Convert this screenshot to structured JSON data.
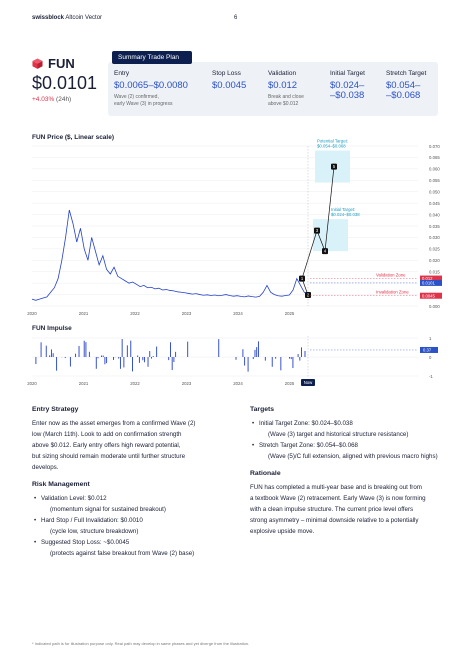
{
  "header": {
    "brand_bold": "swissblock",
    "brand_rest": " Altcoin Vector",
    "page": "6"
  },
  "coin": {
    "name": "FUN",
    "price": "$0.0101",
    "change": "+4.03%",
    "period": "(24h)",
    "brand_color": "#e0334a"
  },
  "plan": {
    "tag": "Summary Trade Plan",
    "entry": {
      "label": "Entry",
      "value": "$0.0065–$0.0080",
      "note1": "Wave (2) confirmed,",
      "note2": "early Wave (3) in progress"
    },
    "stop": {
      "label": "Stop Loss",
      "value": "$0.0045"
    },
    "validation": {
      "label": "Validation",
      "value": "$0.012",
      "note1": "Break and close",
      "note2": "above $0.012"
    },
    "initial": {
      "label": "Initial Target",
      "value1": "$0.024–",
      "value2": "–$0.038"
    },
    "stretch": {
      "label": "Stretch Target",
      "value1": "$0.054–",
      "value2": "–$0.068"
    }
  },
  "chart_data": [
    {
      "type": "line",
      "title": "FUN Price ($, Linear scale)",
      "x_ticks": [
        "2020",
        "2021",
        "2022",
        "2023",
        "2024",
        "2025"
      ],
      "y_ticks": [
        "0.070",
        "0.065",
        "0.060",
        "0.055",
        "0.050",
        "0.045",
        "0.040",
        "0.035",
        "0.030",
        "0.025",
        "0.020",
        "0.015",
        "0.010",
        "0.005",
        "0.000"
      ],
      "ylim": [
        0,
        0.07
      ],
      "price_series": [
        0.003,
        0.0025,
        0.003,
        0.0035,
        0.004,
        0.006,
        0.008,
        0.012,
        0.02,
        0.03,
        0.042,
        0.036,
        0.028,
        0.034,
        0.025,
        0.02,
        0.03,
        0.024,
        0.018,
        0.022,
        0.016,
        0.014,
        0.017,
        0.013,
        0.012,
        0.011,
        0.01,
        0.0105,
        0.0095,
        0.0085,
        0.009,
        0.008,
        0.0082,
        0.0075,
        0.0078,
        0.007,
        0.0072,
        0.0068,
        0.0066,
        0.0062,
        0.006,
        0.0058,
        0.0055,
        0.0052,
        0.0054,
        0.005,
        0.0047,
        0.0049,
        0.0046,
        0.0048,
        0.0045,
        0.0047,
        0.005,
        0.0046,
        0.0043,
        0.0045,
        0.0042,
        0.004,
        0.0044,
        0.0041,
        0.0039,
        0.0042,
        0.006,
        0.009,
        0.006,
        0.005,
        0.0045,
        0.0043,
        0.0046,
        0.0048,
        0.007,
        0.012,
        0.009,
        0.006,
        0.0048
      ],
      "projected_path": [
        {
          "label": "2",
          "price": 0.0048
        },
        {
          "label": "1",
          "price": 0.012
        },
        {
          "label": "3",
          "price": 0.033
        },
        {
          "label": "4",
          "price": 0.024
        },
        {
          "label": "5",
          "price": 0.061
        }
      ],
      "zones": [
        {
          "name": "Potential Target:",
          "range": "$0.054–$0.068",
          "low": 0.054,
          "high": 0.068
        },
        {
          "name": "Initial Target:",
          "range": "$0.024–$0.038",
          "low": 0.024,
          "high": 0.038
        }
      ],
      "levels": [
        {
          "name": "Validation Zone",
          "value": 0.012,
          "tag": "0.012",
          "color": "#e0334a"
        },
        {
          "name": "",
          "value": 0.0101,
          "tag": "0.0101",
          "color": "#2b52c6"
        },
        {
          "name": "Invalidation Zone",
          "value": 0.0045,
          "tag": "0.0045",
          "color": "#e0334a"
        }
      ]
    },
    {
      "type": "bar",
      "title": "FUN Impulse",
      "x_ticks": [
        "2020",
        "2021",
        "2022",
        "2023",
        "2024",
        "2025"
      ],
      "y_ticks": [
        "1",
        "0",
        "-1"
      ],
      "ylim": [
        -1,
        1
      ],
      "current": "0.37",
      "now_label": "Now"
    }
  ],
  "sections": {
    "entry_strategy": {
      "title": "Entry Strategy",
      "lines": [
        "Enter now as the asset emerges from a confirmed Wave (2)",
        "low (March 11th). Look to add on confirmation strength",
        "above $0.012. Early entry offers high reward potential,",
        "but sizing should remain moderate until further structure",
        "develops."
      ]
    },
    "risk": {
      "title": "Risk Management",
      "b1": "Validation Level: $0.012",
      "b1s": "(momentum signal for sustained breakout)",
      "b2": "Hard Stop / Full Invalidation: $0.0010",
      "b2s": "(cycle low, structure breakdown)",
      "b3": "Suggested Stop Loss: ~$0.0045",
      "b3s": "(protects against false breakout from Wave (2) base)"
    },
    "targets": {
      "title": "Targets",
      "b1": "Initial Target Zone: $0.024–$0.038",
      "b1s": "(Wave (3) target and historical structure resistance)",
      "b2": "Stretch Target Zone: $0.054–$0.068",
      "b2s": "(Wave (5)/C full extension, aligned with previous macro highs)"
    },
    "rationale": {
      "title": "Rationale",
      "lines": [
        "FUN has completed a multi-year base and is breaking out from",
        "a textbook Wave (2) retracement. Early Wave (3) is now forming",
        "with a clean impulse structure. The current price level offers",
        "strong asymmetry – minimal downside relative to a potentially",
        "explosive upside move."
      ]
    }
  },
  "footnote": "*  Indicated path is for illustration purpose only. Real path may develop in same phases and yet diverge from the illustration."
}
